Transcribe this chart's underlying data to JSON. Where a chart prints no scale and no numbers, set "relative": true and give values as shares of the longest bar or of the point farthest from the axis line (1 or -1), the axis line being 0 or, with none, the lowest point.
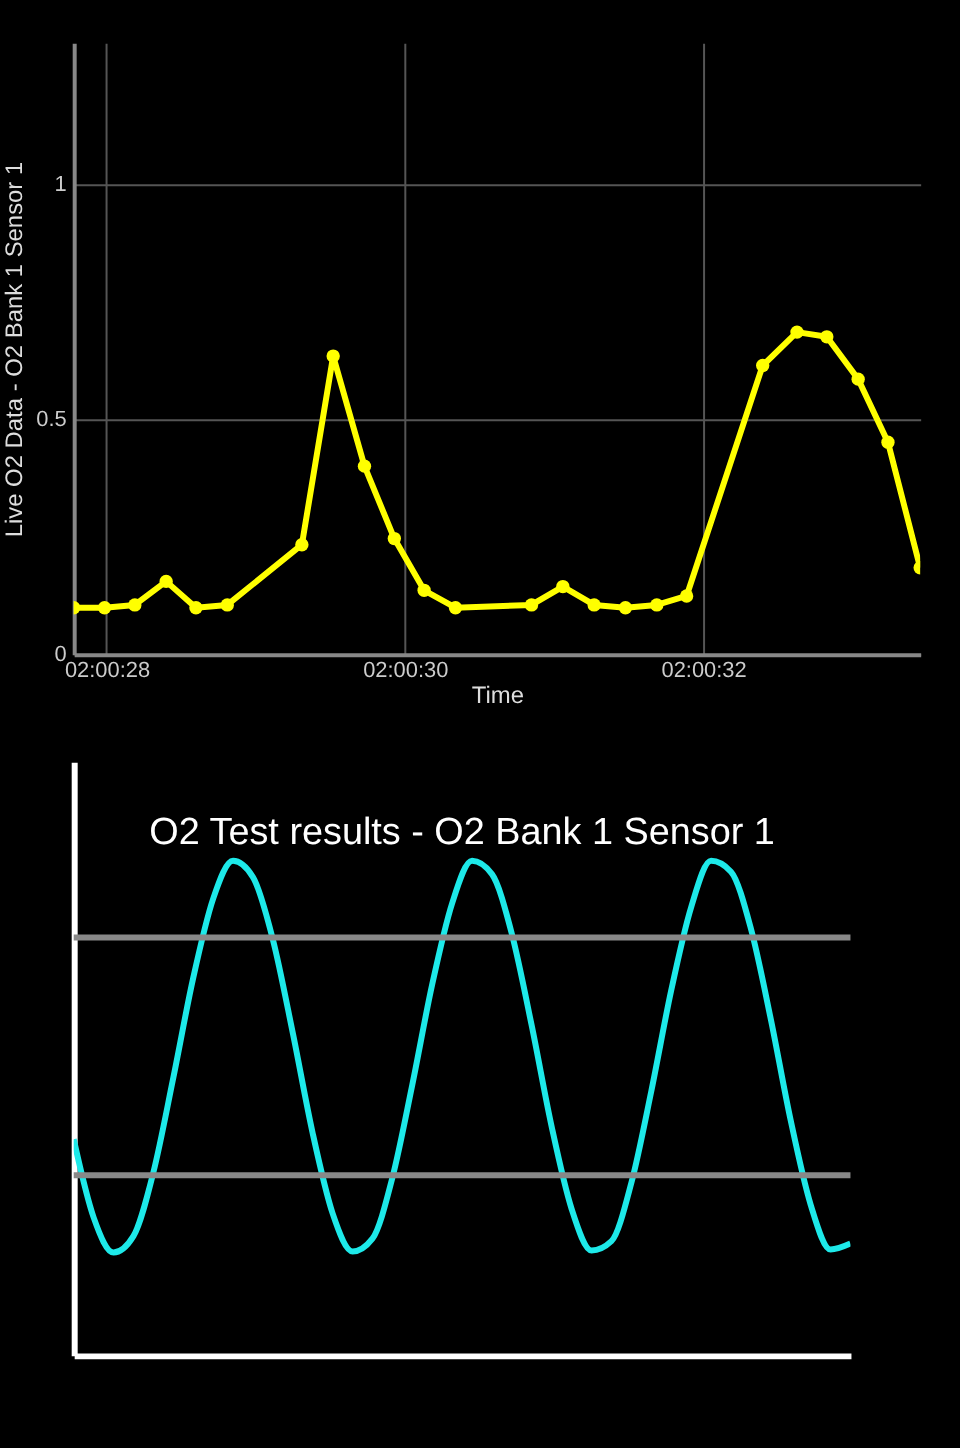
{
  "chart_data": [
    {
      "type": "line",
      "xlabel": "Time",
      "ylabel": "Live O2 Data - O2 Bank 1 Sensor 1",
      "x": [
        2.0077167,
        2.0077742,
        2.0078306,
        2.0078889,
        2.0079444,
        2.0080028,
        2.0081417,
        2.0082,
        2.0082583,
        2.0083139,
        2.0083694,
        2.0084278,
        2.0085694,
        2.0086278,
        2.0086861,
        2.0087444,
        2.0088028,
        2.0088583,
        2.009,
        2.0090639,
        2.0091194,
        2.0091778,
        2.0092333,
        2.0092933
      ],
      "series": [
        {
          "color": "#ffff00",
          "values": [
            0.099,
            0.099,
            0.105,
            0.155,
            0.099,
            0.105,
            0.233,
            0.634,
            0.4,
            0.246,
            0.136,
            0.099,
            0.105,
            0.144,
            0.105,
            0.099,
            0.105,
            0.124,
            0.614,
            0.685,
            0.675,
            0.585,
            0.451,
            0.184
          ]
        }
      ],
      "xlim": [
        2.0077167,
        2.0092933
      ],
      "xticks": [
        {
          "value": 2.0077778,
          "label": "02:00:28"
        },
        {
          "value": 2.0083333,
          "label": "02:00:30"
        },
        {
          "value": 2.0088889,
          "label": "02:00:32"
        }
      ],
      "ylim": [
        0,
        1.3
      ],
      "yticks": [
        0,
        0.5,
        1
      ],
      "grid": true,
      "marker": "circle",
      "line_style": "solid"
    },
    {
      "type": "line",
      "title": "O2 Test results - O2 Bank 1 Sensor 1",
      "relative": true,
      "categories": [
        null,
        null,
        null,
        null,
        null,
        null,
        null,
        null,
        null,
        null,
        null,
        null,
        null,
        null,
        null,
        null,
        null,
        null,
        null,
        null,
        null,
        null,
        null,
        null,
        null,
        null,
        null,
        null,
        null,
        null,
        null,
        null,
        null,
        null,
        null,
        null,
        null,
        null,
        null,
        null
      ],
      "series": [
        {
          "color": "#1de9e9",
          "values": [
            0.437,
            0.279,
            0.208,
            0.241,
            0.37,
            0.561,
            0.763,
            0.923,
            1.0,
            0.967,
            0.841,
            0.652,
            0.449,
            0.287,
            0.21,
            0.236,
            0.359,
            0.547,
            0.75,
            0.914,
            1.0,
            0.973,
            0.852,
            0.666,
            0.462,
            0.296,
            0.212,
            0.231,
            0.349,
            0.534,
            0.738,
            0.906,
            1.0,
            0.978,
            0.863,
            0.68,
            0.475,
            0.305,
            0.214,
            0.226
          ]
        }
      ],
      "ref_lines": [
        {
          "axis": "y",
          "value": 0.845,
          "color": "#888888"
        },
        {
          "axis": "y",
          "value": 0.364,
          "color": "#888888"
        }
      ]
    }
  ]
}
